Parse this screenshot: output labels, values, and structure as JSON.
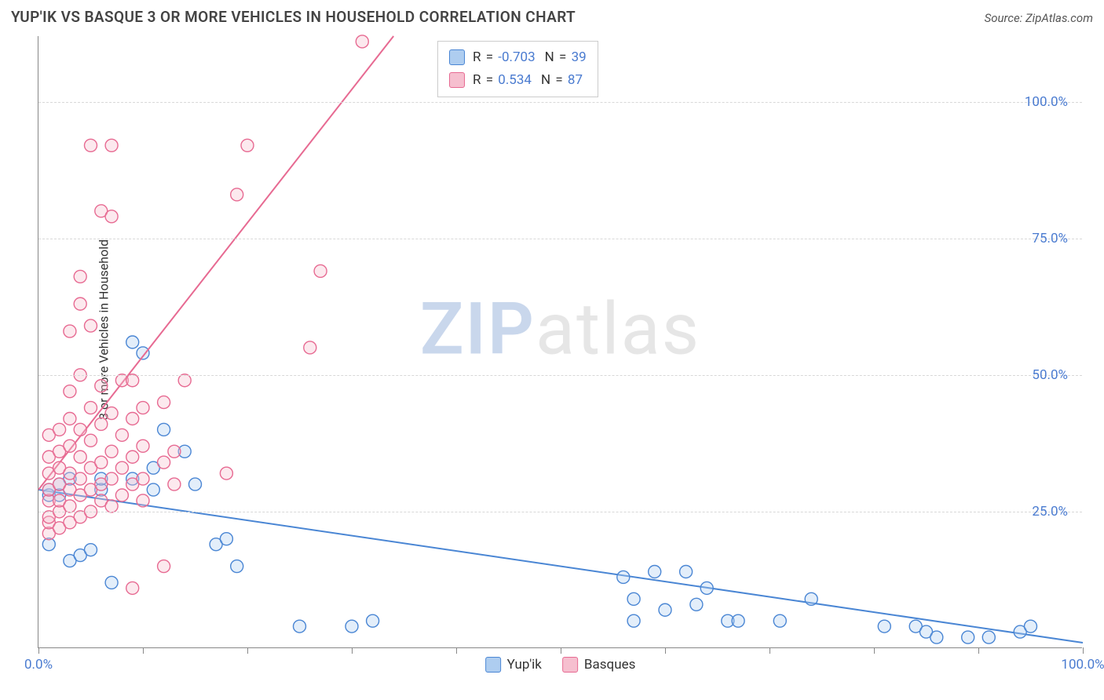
{
  "title": "YUP'IK VS BASQUE 3 OR MORE VEHICLES IN HOUSEHOLD CORRELATION CHART",
  "source_label": "Source: ZipAtlas.com",
  "y_axis_label": "3 or more Vehicles in Household",
  "watermark": {
    "bold": "ZIP",
    "light": "atlas"
  },
  "chart": {
    "type": "scatter",
    "background_color": "#ffffff",
    "grid_color": "#d8d8d8",
    "axis_color": "#888888",
    "xlim": [
      0,
      100
    ],
    "ylim": [
      0,
      112
    ],
    "x_ticks": [
      0,
      10,
      20,
      30,
      40,
      50,
      60,
      70,
      80,
      90,
      100
    ],
    "x_tick_labels": {
      "0": "0.0%",
      "100": "100.0%"
    },
    "y_gridlines": [
      25,
      50,
      75,
      100
    ],
    "y_tick_labels": {
      "25": "25.0%",
      "50": "50.0%",
      "75": "75.0%",
      "100": "100.0%"
    },
    "marker_radius": 8,
    "marker_stroke_width": 1.4,
    "marker_fill_opacity": 0.35,
    "line_width": 2,
    "series": [
      {
        "name": "Yup'ik",
        "color_stroke": "#4a86d4",
        "color_fill": "#aecdf0",
        "regression": {
          "x1": 0,
          "y1": 29,
          "x2": 100,
          "y2": 1
        },
        "R": "-0.703",
        "N": "39",
        "points": [
          [
            1,
            19
          ],
          [
            1,
            28
          ],
          [
            1,
            29
          ],
          [
            2,
            28
          ],
          [
            2,
            30
          ],
          [
            3,
            31
          ],
          [
            3,
            16
          ],
          [
            4,
            17
          ],
          [
            5,
            18
          ],
          [
            6,
            29
          ],
          [
            6,
            31
          ],
          [
            7,
            12
          ],
          [
            9,
            56
          ],
          [
            9,
            31
          ],
          [
            10,
            54
          ],
          [
            11,
            33
          ],
          [
            11,
            29
          ],
          [
            12,
            40
          ],
          [
            14,
            36
          ],
          [
            15,
            30
          ],
          [
            17,
            19
          ],
          [
            18,
            20
          ],
          [
            19,
            15
          ],
          [
            25,
            4
          ],
          [
            30,
            4
          ],
          [
            32,
            5
          ],
          [
            56,
            13
          ],
          [
            57,
            5
          ],
          [
            57,
            9
          ],
          [
            59,
            14
          ],
          [
            60,
            7
          ],
          [
            62,
            14
          ],
          [
            63,
            8
          ],
          [
            64,
            11
          ],
          [
            66,
            5
          ],
          [
            67,
            5
          ],
          [
            71,
            5
          ],
          [
            74,
            9
          ],
          [
            81,
            4
          ],
          [
            84,
            4
          ],
          [
            85,
            3
          ],
          [
            86,
            2
          ],
          [
            89,
            2
          ],
          [
            91,
            2
          ],
          [
            94,
            3
          ],
          [
            95,
            4
          ]
        ]
      },
      {
        "name": "Basques",
        "color_stroke": "#e76a92",
        "color_fill": "#f6bfcf",
        "regression": {
          "x1": 0,
          "y1": 29,
          "x2": 34,
          "y2": 112
        },
        "R": "0.534",
        "N": "87",
        "points": [
          [
            1,
            21
          ],
          [
            1,
            23
          ],
          [
            1,
            24
          ],
          [
            1,
            27
          ],
          [
            1,
            29
          ],
          [
            1,
            32
          ],
          [
            1,
            35
          ],
          [
            1,
            39
          ],
          [
            2,
            22
          ],
          [
            2,
            25
          ],
          [
            2,
            27
          ],
          [
            2,
            30
          ],
          [
            2,
            33
          ],
          [
            2,
            36
          ],
          [
            2,
            40
          ],
          [
            3,
            23
          ],
          [
            3,
            26
          ],
          [
            3,
            29
          ],
          [
            3,
            32
          ],
          [
            3,
            37
          ],
          [
            3,
            42
          ],
          [
            3,
            47
          ],
          [
            3,
            58
          ],
          [
            4,
            24
          ],
          [
            4,
            28
          ],
          [
            4,
            31
          ],
          [
            4,
            35
          ],
          [
            4,
            40
          ],
          [
            4,
            50
          ],
          [
            4,
            63
          ],
          [
            4,
            68
          ],
          [
            5,
            25
          ],
          [
            5,
            29
          ],
          [
            5,
            33
          ],
          [
            5,
            38
          ],
          [
            5,
            44
          ],
          [
            5,
            59
          ],
          [
            5,
            92
          ],
          [
            6,
            27
          ],
          [
            6,
            30
          ],
          [
            6,
            34
          ],
          [
            6,
            41
          ],
          [
            6,
            48
          ],
          [
            6,
            80
          ],
          [
            7,
            26
          ],
          [
            7,
            31
          ],
          [
            7,
            36
          ],
          [
            7,
            43
          ],
          [
            7,
            79
          ],
          [
            7,
            92
          ],
          [
            8,
            28
          ],
          [
            8,
            33
          ],
          [
            8,
            39
          ],
          [
            8,
            49
          ],
          [
            9,
            11
          ],
          [
            9,
            30
          ],
          [
            9,
            35
          ],
          [
            9,
            42
          ],
          [
            9,
            49
          ],
          [
            10,
            27
          ],
          [
            10,
            31
          ],
          [
            10,
            37
          ],
          [
            10,
            44
          ],
          [
            12,
            15
          ],
          [
            12,
            34
          ],
          [
            12,
            45
          ],
          [
            13,
            30
          ],
          [
            13,
            36
          ],
          [
            14,
            49
          ],
          [
            18,
            32
          ],
          [
            19,
            83
          ],
          [
            20,
            92
          ],
          [
            26,
            55
          ],
          [
            27,
            69
          ],
          [
            31,
            111
          ]
        ]
      }
    ]
  },
  "legend": [
    {
      "label": "Yup'ik",
      "fill": "#aecdf0",
      "stroke": "#4a86d4"
    },
    {
      "label": "Basques",
      "fill": "#f6bfcf",
      "stroke": "#e76a92"
    }
  ],
  "stats_labels": {
    "R": "R",
    "N": "N",
    "eq": "="
  }
}
